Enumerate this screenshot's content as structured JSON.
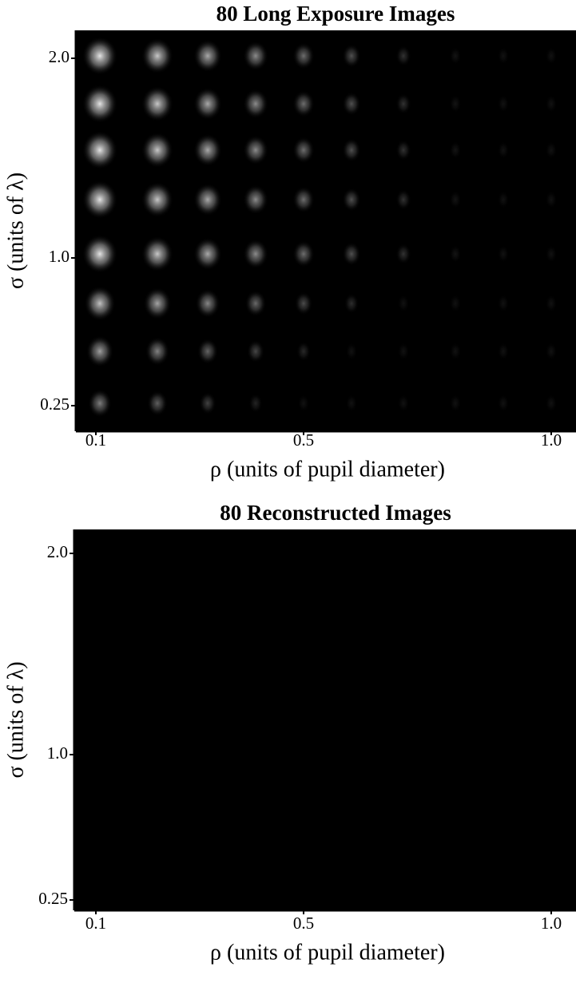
{
  "panels": [
    {
      "title": "80 Long Exposure Images",
      "x_label": "ρ (units of pupil diameter)",
      "y_label": "σ (units of λ)",
      "x_ticks": [
        "0.1",
        "0.5",
        "1.0"
      ],
      "y_ticks": [
        "2.0",
        "1.0",
        "0.25"
      ]
    },
    {
      "title": "80 Reconstructed Images",
      "x_label": "ρ (units of pupil diameter)",
      "y_label": "σ (units of λ)",
      "x_ticks": [
        "0.1",
        "0.5",
        "1.0"
      ],
      "y_ticks": [
        "2.0",
        "1.0",
        "0.25"
      ]
    }
  ]
}
